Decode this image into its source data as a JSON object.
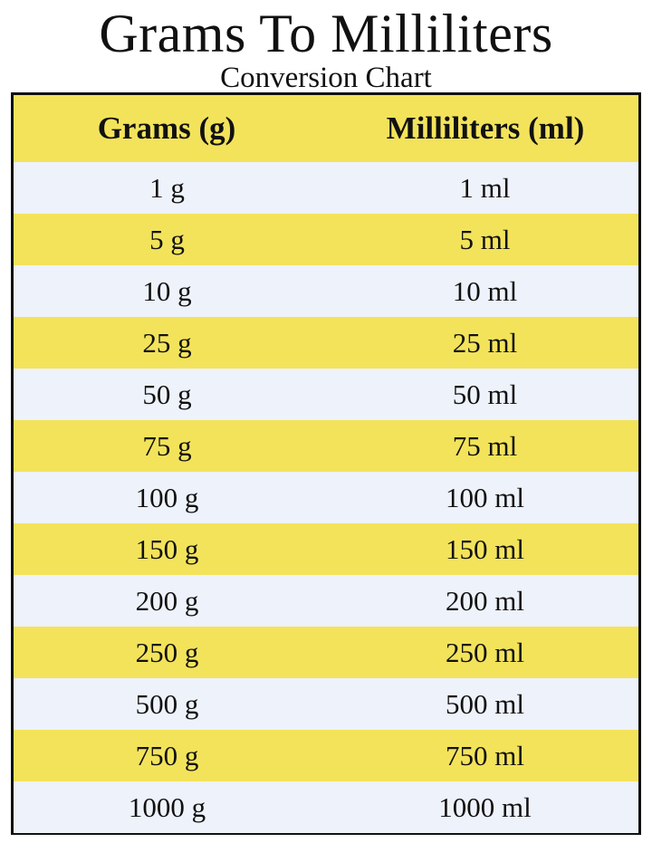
{
  "title": "Grams To Milliliters",
  "subtitle": "Conversion Chart",
  "colors": {
    "header_bg": "#f3e35b",
    "stripe_yellow": "#f3e35b",
    "stripe_light": "#eef2fb",
    "border": "#111111"
  },
  "table": {
    "headers": [
      "Grams (g)",
      "Milliliters (ml)"
    ],
    "rows": [
      [
        "1 g",
        "1 ml"
      ],
      [
        "5 g",
        "5 ml"
      ],
      [
        "10 g",
        "10 ml"
      ],
      [
        "25 g",
        "25 ml"
      ],
      [
        "50 g",
        "50 ml"
      ],
      [
        "75 g",
        "75 ml"
      ],
      [
        "100 g",
        "100 ml"
      ],
      [
        "150 g",
        "150 ml"
      ],
      [
        "200 g",
        "200 ml"
      ],
      [
        "250 g",
        "250 ml"
      ],
      [
        "500 g",
        "500 ml"
      ],
      [
        "750 g",
        "750 ml"
      ],
      [
        "1000 g",
        "1000 ml"
      ]
    ]
  }
}
